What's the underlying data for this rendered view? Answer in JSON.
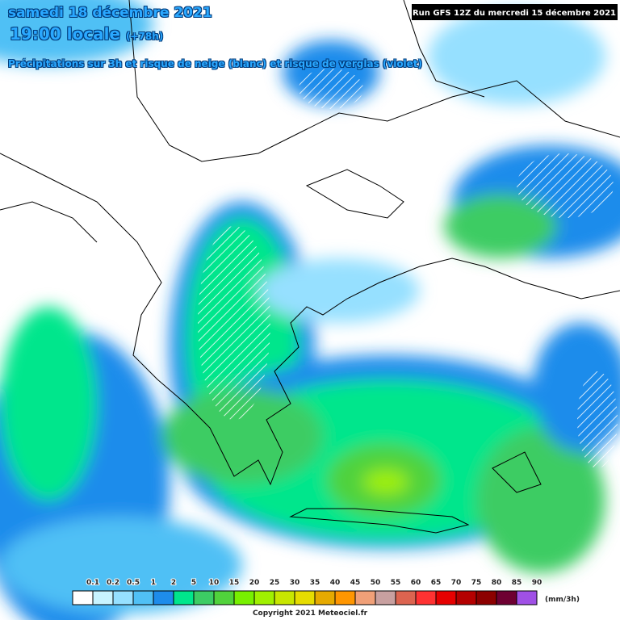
{
  "header": {
    "date": "samedi 18 décembre 2021",
    "time": "19:00 locale",
    "lead": "(+78h)",
    "subtitle": "Précipitations sur 3h et risque de neige (blanc) et risque de verglas (violet)",
    "run": "Run GFS 12Z du mercredi 15 décembre 2021"
  },
  "legend": {
    "labels": [
      "0.1",
      "0.2",
      "0.5",
      "1",
      "2",
      "5",
      "10",
      "15",
      "20",
      "25",
      "30",
      "35",
      "40",
      "45",
      "50",
      "55",
      "60",
      "65",
      "70",
      "75",
      "80",
      "85",
      "90"
    ],
    "colors": [
      "#ffffff",
      "#c8f4ff",
      "#96e0ff",
      "#50c0f5",
      "#1e8ceb",
      "#00e68c",
      "#3ccc64",
      "#50d23c",
      "#78f000",
      "#a0f000",
      "#c8e600",
      "#e6dc00",
      "#e6aa00",
      "#ff9600",
      "#f0a078",
      "#c8a0a0",
      "#dc6450",
      "#ff3232",
      "#e60000",
      "#b40000",
      "#8c0000",
      "#6e0032",
      "#a050e6"
    ],
    "unit": "(mm/3h)"
  },
  "footer": {
    "copyright": "Copyright 2021 Meteociel.fr"
  }
}
